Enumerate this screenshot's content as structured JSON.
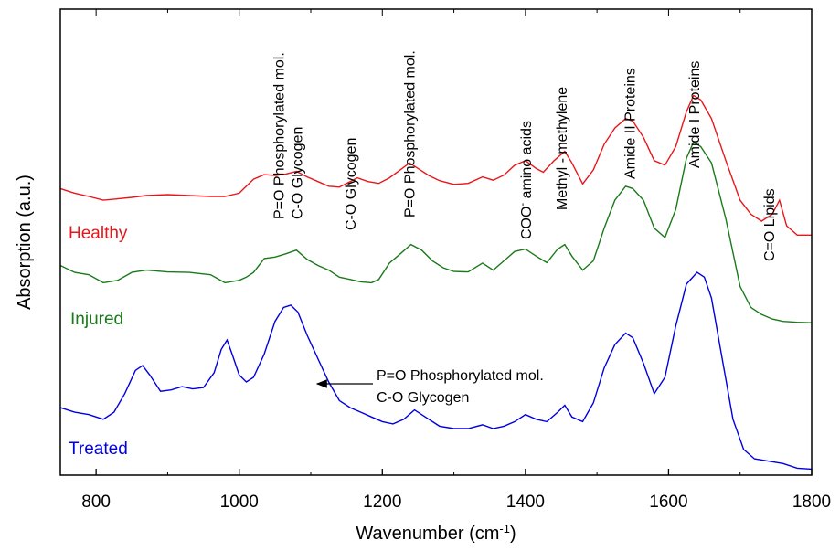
{
  "chart_data": {
    "type": "line",
    "xlabel": "Wavenumber (cm-1)",
    "xlabel_main": "Wavenumber (cm",
    "xlabel_sup": "-1",
    "xlabel_close": ")",
    "ylabel": "Absorption (a.u.)",
    "xlim": [
      750,
      1800
    ],
    "ylim": [
      0,
      100
    ],
    "x_ticks": [
      800,
      1000,
      1200,
      1400,
      1600,
      1800
    ],
    "x_tick_labels": [
      "800",
      "1000",
      "1200",
      "1400",
      "1600",
      "1800"
    ],
    "colors": {
      "healthy": "#e8161a",
      "injured": "#1a7a1a",
      "treated": "#0000e0",
      "axis": "#000000"
    },
    "series": [
      {
        "name": "Healthy",
        "color": "#e8161a",
        "x": [
          750,
          770,
          790,
          810,
          830,
          850,
          870,
          900,
          930,
          960,
          980,
          1000,
          1010,
          1020,
          1035,
          1050,
          1065,
          1080,
          1095,
          1110,
          1125,
          1140,
          1155,
          1165,
          1180,
          1195,
          1210,
          1225,
          1238,
          1250,
          1265,
          1280,
          1300,
          1320,
          1340,
          1355,
          1370,
          1385,
          1400,
          1415,
          1425,
          1440,
          1455,
          1465,
          1480,
          1495,
          1510,
          1525,
          1540,
          1550,
          1565,
          1580,
          1595,
          1610,
          1625,
          1635,
          1645,
          1660,
          1680,
          1700,
          1715,
          1730,
          1745,
          1755,
          1765,
          1780,
          1800
        ],
        "y": [
          61.5,
          60.5,
          59.8,
          59.0,
          59.3,
          59.6,
          60.0,
          60.2,
          60.0,
          59.8,
          59.8,
          60.5,
          62.0,
          63.5,
          64.5,
          64.3,
          64.6,
          65.2,
          64.0,
          63.0,
          62.0,
          61.8,
          63.0,
          63.8,
          63.0,
          62.6,
          63.8,
          65.5,
          67.0,
          65.8,
          64.3,
          63.2,
          62.4,
          62.6,
          64.0,
          63.3,
          64.4,
          66.5,
          67.5,
          65.8,
          65.0,
          67.5,
          69.5,
          67.0,
          62.5,
          65.5,
          71.0,
          74.5,
          76.5,
          76.0,
          72.5,
          67.5,
          66.5,
          70.5,
          78.0,
          81.5,
          80.5,
          76.5,
          67.5,
          59.0,
          56.0,
          54.5,
          56.0,
          59.0,
          53.5,
          51.5,
          51.5
        ]
      },
      {
        "name": "Injured",
        "color": "#1a7a1a",
        "x": [
          750,
          770,
          790,
          810,
          830,
          850,
          870,
          900,
          930,
          960,
          980,
          1000,
          1010,
          1020,
          1035,
          1050,
          1065,
          1080,
          1095,
          1110,
          1125,
          1140,
          1155,
          1170,
          1185,
          1195,
          1210,
          1225,
          1240,
          1255,
          1270,
          1285,
          1300,
          1320,
          1340,
          1355,
          1370,
          1385,
          1400,
          1415,
          1430,
          1445,
          1455,
          1465,
          1480,
          1495,
          1510,
          1525,
          1540,
          1550,
          1565,
          1580,
          1595,
          1610,
          1625,
          1635,
          1645,
          1660,
          1680,
          1700,
          1715,
          1730,
          1745,
          1760,
          1780,
          1800
        ],
        "y": [
          45.0,
          43.5,
          43.0,
          41.3,
          41.8,
          43.5,
          44.0,
          43.6,
          43.5,
          43.0,
          41.3,
          41.8,
          42.5,
          43.5,
          46.5,
          46.8,
          47.5,
          48.3,
          46.3,
          45.0,
          44.0,
          42.5,
          42.0,
          41.5,
          41.3,
          42.0,
          45.5,
          47.5,
          49.5,
          48.3,
          46.0,
          44.5,
          43.7,
          43.6,
          45.5,
          44.0,
          46.0,
          48.0,
          48.5,
          47.0,
          45.6,
          48.5,
          49.5,
          47.0,
          44.0,
          46.0,
          53.0,
          59.0,
          62.0,
          61.5,
          59.0,
          53.0,
          51.0,
          57.0,
          68.0,
          71.5,
          70.5,
          67.0,
          55.0,
          40.5,
          36.0,
          34.5,
          33.5,
          33.0,
          32.8,
          32.7
        ]
      },
      {
        "name": "Treated",
        "color": "#0000e0",
        "x": [
          750,
          770,
          790,
          810,
          825,
          840,
          855,
          865,
          875,
          890,
          905,
          920,
          935,
          950,
          965,
          975,
          983,
          990,
          1000,
          1010,
          1020,
          1035,
          1050,
          1062,
          1072,
          1082,
          1095,
          1110,
          1125,
          1140,
          1155,
          1170,
          1185,
          1200,
          1215,
          1230,
          1245,
          1260,
          1280,
          1300,
          1320,
          1340,
          1355,
          1370,
          1385,
          1400,
          1415,
          1430,
          1445,
          1455,
          1465,
          1480,
          1495,
          1510,
          1525,
          1540,
          1550,
          1565,
          1580,
          1595,
          1610,
          1625,
          1640,
          1650,
          1660,
          1675,
          1690,
          1705,
          1720,
          1740,
          1760,
          1780,
          1800
        ],
        "y": [
          14.5,
          13.5,
          13.0,
          12.0,
          13.5,
          17.5,
          22.5,
          23.5,
          21.5,
          18.0,
          18.3,
          19.0,
          18.5,
          18.8,
          22.0,
          27.0,
          29.0,
          26.0,
          21.5,
          20.0,
          21.0,
          26.0,
          33.0,
          36.0,
          36.5,
          35.0,
          30.0,
          25.0,
          20.0,
          16.0,
          14.5,
          13.5,
          12.5,
          11.5,
          11.0,
          12.0,
          14.0,
          12.5,
          10.5,
          10.0,
          10.0,
          10.8,
          10.0,
          10.5,
          11.5,
          13.0,
          12.0,
          11.5,
          13.5,
          15.0,
          12.5,
          11.5,
          15.5,
          23.0,
          28.0,
          30.5,
          29.5,
          24.0,
          17.5,
          21.0,
          32.0,
          41.0,
          43.5,
          42.5,
          38.0,
          25.0,
          12.0,
          5.5,
          3.5,
          3.0,
          2.5,
          1.5,
          1.3
        ]
      }
    ],
    "series_labels": [
      "Healthy",
      "Injured",
      "Treated"
    ],
    "peak_annotations": [
      {
        "wavenumber": 1080,
        "lines": [
          "P=O Phosphorylated mol.",
          "C-O Glycogen"
        ]
      },
      {
        "wavenumber": 1155,
        "lines": [
          "C-O  Glycogen"
        ]
      },
      {
        "wavenumber": 1237,
        "lines": [
          "P=O Phosphorylated mol."
        ]
      },
      {
        "wavenumber": 1400,
        "lines": [
          "COO",
          " amino acids"
        ],
        "sup": "-"
      },
      {
        "wavenumber": 1450,
        "lines": [
          "Methyl - methylene"
        ]
      },
      {
        "wavenumber": 1545,
        "lines": [
          "Amide II  Proteins"
        ]
      },
      {
        "wavenumber": 1635,
        "lines": [
          "Amide I  Proteins"
        ]
      },
      {
        "wavenumber": 1740,
        "lines": [
          "C=O Lipids"
        ]
      }
    ],
    "arrow_annotation": {
      "lines": [
        "P=O Phosphorylated mol.",
        "C-O Glycogen"
      ],
      "points_to_wavenumber": 1090,
      "series": "Treated"
    },
    "grid": false,
    "legend": "inline"
  }
}
